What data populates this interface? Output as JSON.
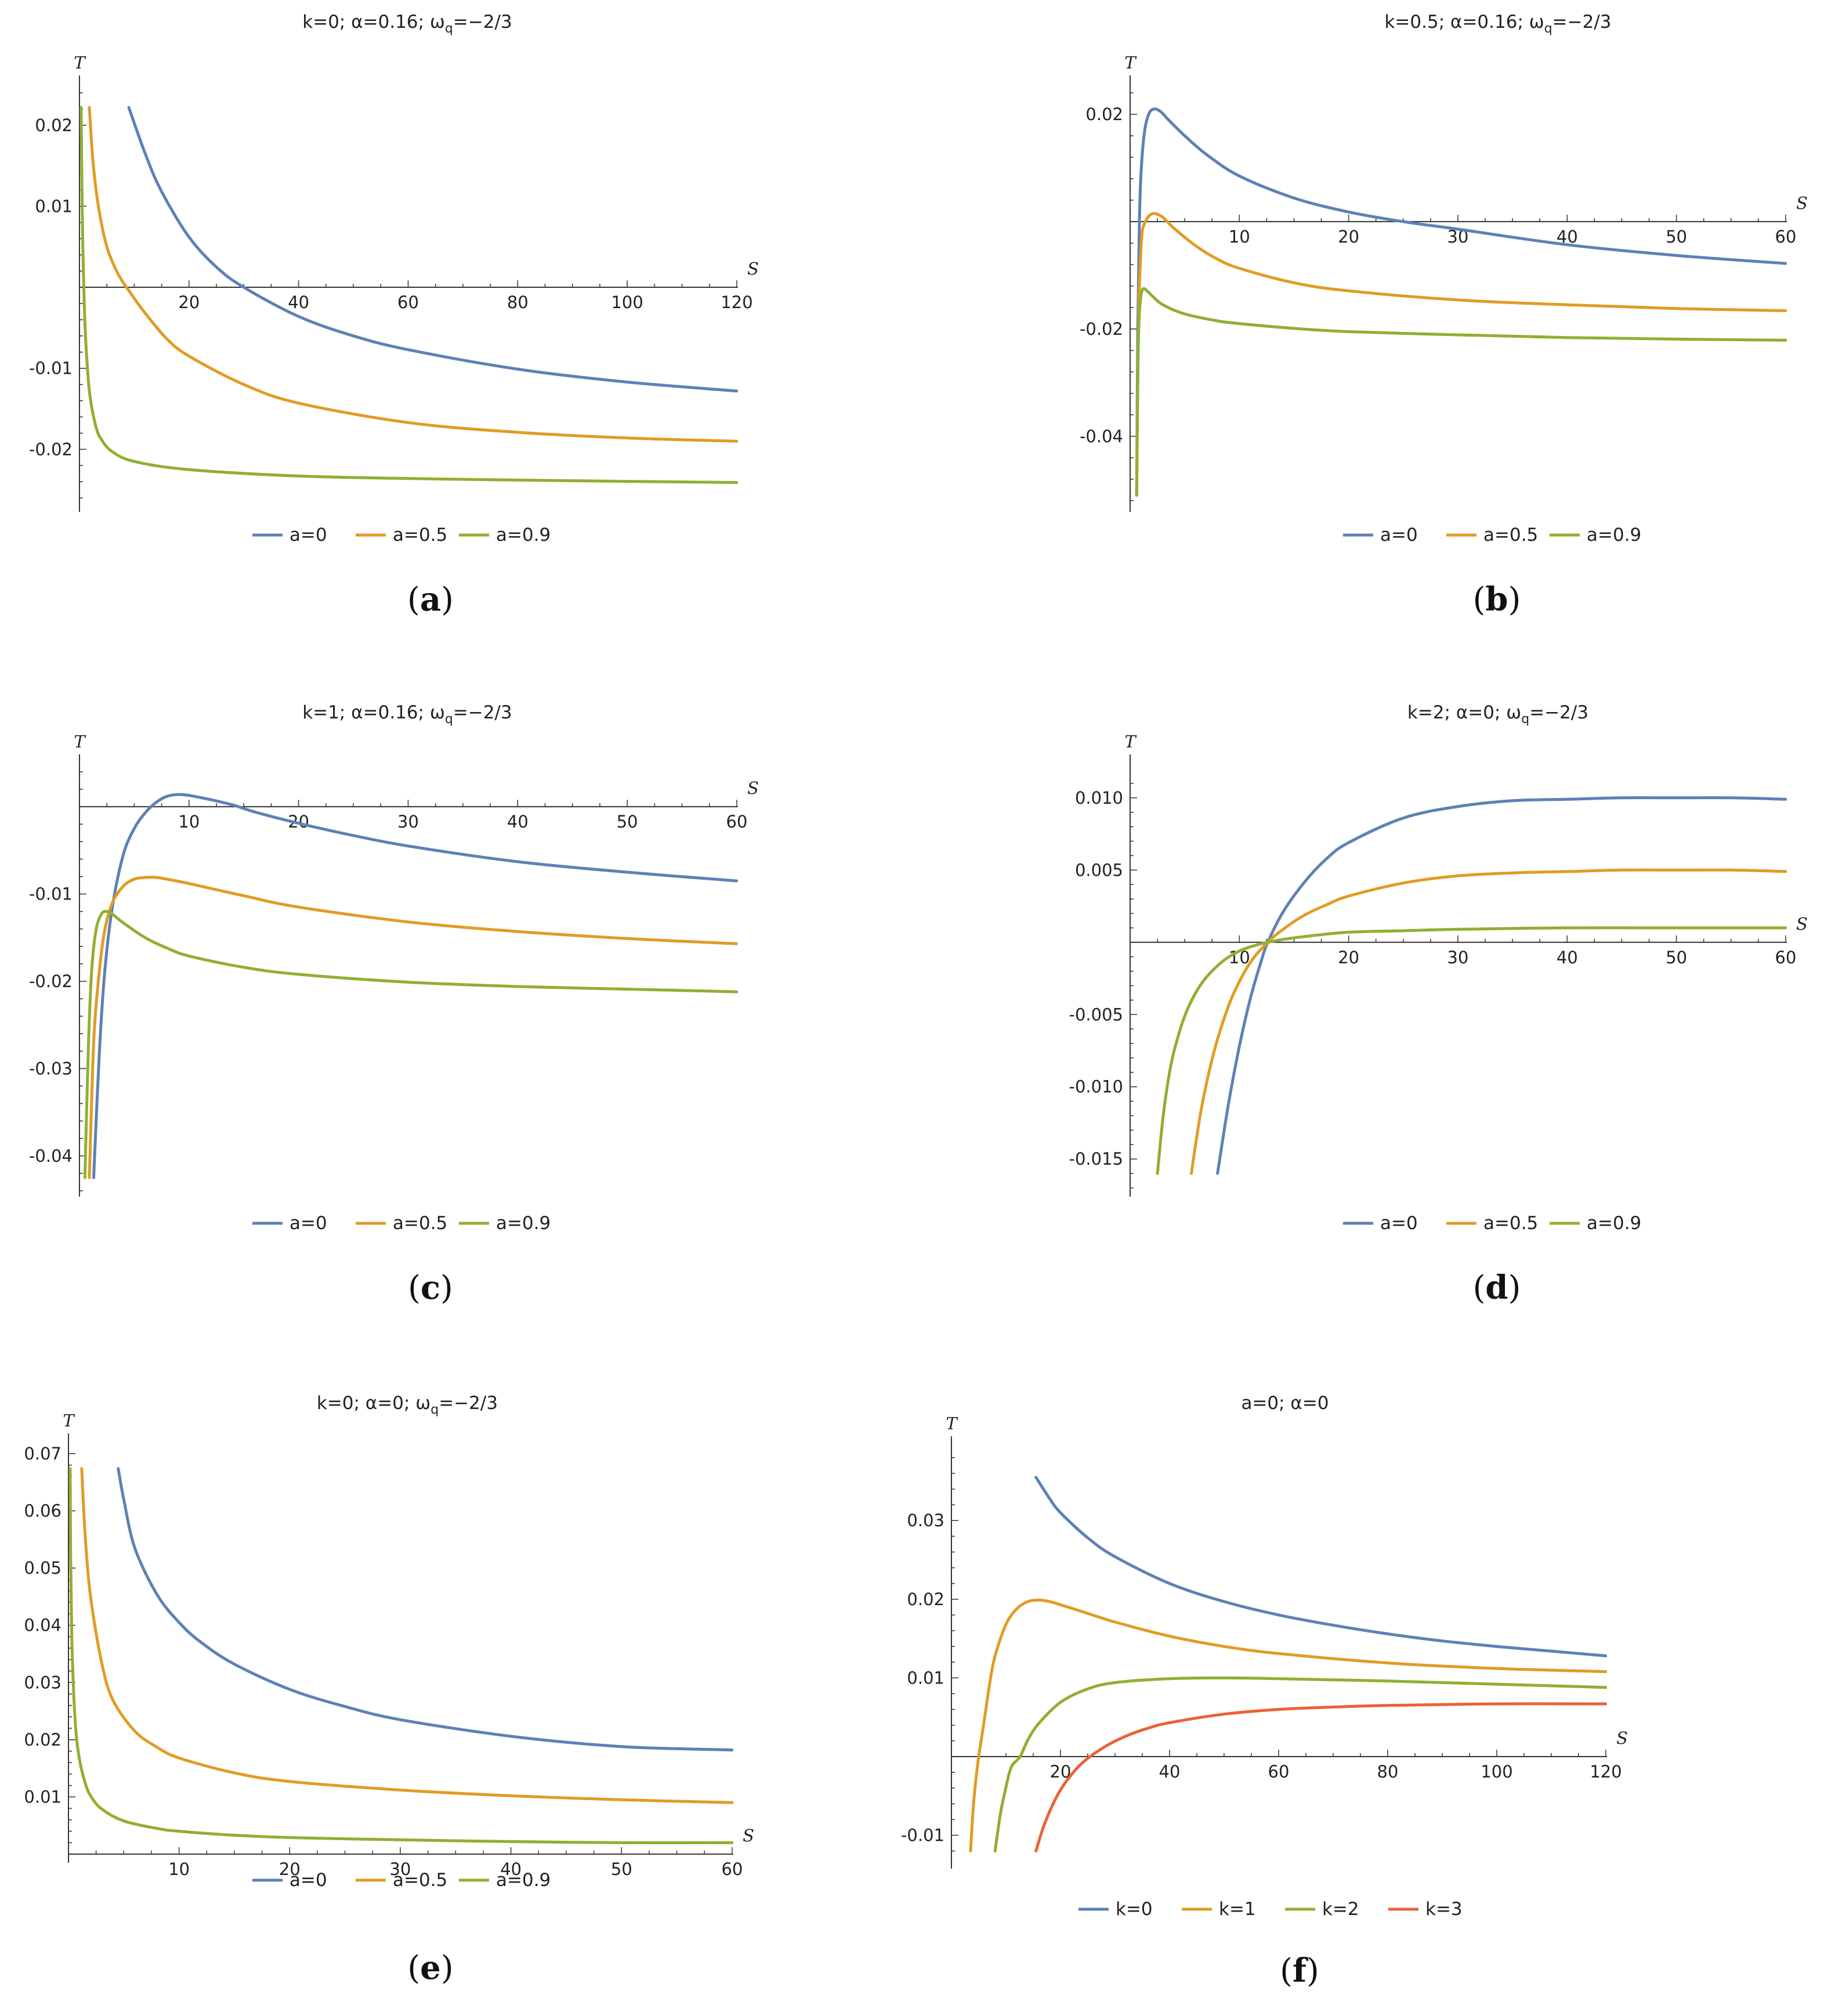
{
  "colors": {
    "blue": "#5e81b5",
    "orange": "#e19c24",
    "green": "#8fb032",
    "red": "#eb6235",
    "axis": "#333333"
  },
  "chart_data": [
    {
      "type": "line",
      "caption": "a",
      "title": "k=0; α=0.16; ω",
      "title_sub": "q",
      "title_tail": "=−2/3",
      "xlabel": "S",
      "ylabel": "T",
      "xlim": [
        0,
        120
      ],
      "ylim": [
        -0.027,
        0.024
      ],
      "xticks": [
        20,
        40,
        60,
        80,
        100,
        120
      ],
      "yticks": [
        0.02,
        0.01,
        -0.01,
        -0.02
      ],
      "xtick_labels": [
        "20",
        "40",
        "60",
        "80",
        "100",
        "120"
      ],
      "ytick_labels": [
        "0.02",
        "0.01",
        "-0.01",
        "-0.02"
      ],
      "series": [
        {
          "name": "a=0",
          "color": "blue",
          "x": [
            9,
            12,
            15,
            20,
            25,
            30,
            40,
            50,
            60,
            80,
            100,
            120
          ],
          "y": [
            0.0222,
            0.0165,
            0.0118,
            0.0062,
            0.0025,
            0.0,
            -0.0036,
            -0.006,
            -0.0077,
            -0.0101,
            -0.0117,
            -0.0128
          ]
        },
        {
          "name": "a=0.5",
          "color": "orange",
          "x": [
            1.8,
            2.5,
            3.5,
            5,
            7,
            9,
            12,
            16,
            20,
            30,
            40,
            60,
            80,
            100,
            120
          ],
          "y": [
            0.0222,
            0.0153,
            0.0098,
            0.005,
            0.0017,
            -0.0004,
            -0.0032,
            -0.0064,
            -0.0085,
            -0.012,
            -0.0143,
            -0.0167,
            -0.0179,
            -0.0186,
            -0.019
          ]
        },
        {
          "name": "a=0.9",
          "color": "green",
          "x": [
            0.3,
            0.5,
            0.7,
            1,
            1.5,
            2,
            3,
            4,
            6,
            10,
            20,
            40,
            60,
            80,
            120
          ],
          "y": [
            0.0222,
            0.0095,
            0.0025,
            -0.0045,
            -0.0105,
            -0.0138,
            -0.0172,
            -0.0188,
            -0.0203,
            -0.0215,
            -0.0225,
            -0.0233,
            -0.0236,
            -0.0238,
            -0.0241
          ]
        }
      ],
      "legend": [
        "a=0",
        "a=0.5",
        "a=0.9"
      ]
    },
    {
      "type": "line",
      "caption": "b",
      "title": "k=0.5; α=0.16; ω",
      "title_sub": "q",
      "title_tail": "=−2/3",
      "xlabel": "S",
      "ylabel": "T",
      "xlim": [
        0,
        60
      ],
      "ylim": [
        -0.053,
        0.024
      ],
      "xticks": [
        10,
        20,
        30,
        40,
        50,
        60
      ],
      "yticks": [
        0.02,
        -0.02,
        -0.04
      ],
      "xtick_labels": [
        "10",
        "20",
        "30",
        "40",
        "50",
        "60"
      ],
      "ytick_labels": [
        "0.02",
        "-0.02",
        "-0.04"
      ],
      "series": [
        {
          "name": "a=0",
          "color": "blue",
          "x": [
            0.6,
            0.7,
            0.85,
            1.0,
            1.3,
            1.7,
            2.2,
            2.8,
            3.5,
            5,
            7,
            10,
            15,
            20,
            25,
            30,
            40,
            50,
            60
          ],
          "y": [
            -0.051,
            -0.02,
            0.0,
            0.009,
            0.0165,
            0.02,
            0.021,
            0.0205,
            0.019,
            0.016,
            0.0125,
            0.0085,
            0.0044,
            0.0018,
            0.0,
            -0.0014,
            -0.0043,
            -0.0063,
            -0.0078
          ]
        },
        {
          "name": "a=0.5",
          "color": "orange",
          "x": [
            0.6,
            0.7,
            0.8,
            0.95,
            1.1,
            1.4,
            1.8,
            2.3,
            3,
            4,
            6,
            8,
            10,
            15,
            20,
            30,
            40,
            50,
            60
          ],
          "y": [
            -0.051,
            -0.028,
            -0.015,
            -0.007,
            -0.002,
            0.0,
            0.0012,
            0.0015,
            0.0008,
            -0.0012,
            -0.0045,
            -0.007,
            -0.0087,
            -0.0114,
            -0.0129,
            -0.0146,
            -0.0155,
            -0.0162,
            -0.0166
          ]
        },
        {
          "name": "a=0.9",
          "color": "green",
          "x": [
            0.6,
            0.7,
            0.8,
            0.95,
            1.1,
            1.3,
            1.6,
            2,
            3,
            5,
            8,
            10,
            15,
            20,
            30,
            40,
            50,
            60
          ],
          "y": [
            -0.051,
            -0.03,
            -0.019,
            -0.0145,
            -0.0128,
            -0.0125,
            -0.013,
            -0.0138,
            -0.0155,
            -0.0172,
            -0.0185,
            -0.019,
            -0.0199,
            -0.0205,
            -0.0211,
            -0.0216,
            -0.0219,
            -0.0221
          ]
        }
      ],
      "legend": [
        "a=0",
        "a=0.5",
        "a=0.9"
      ]
    },
    {
      "type": "line",
      "caption": "c",
      "title": "k=1; α=0.16; ω",
      "title_sub": "q",
      "title_tail": "=−2/3",
      "xlabel": "S",
      "ylabel": "T",
      "xlim": [
        0,
        60
      ],
      "ylim": [
        -0.044,
        0.004
      ],
      "xticks": [
        10,
        20,
        30,
        40,
        50,
        60
      ],
      "yticks": [
        -0.01,
        -0.02,
        -0.03,
        -0.04
      ],
      "xtick_labels": [
        "10",
        "20",
        "30",
        "40",
        "50",
        "60"
      ],
      "ytick_labels": [
        "-0.01",
        "-0.02",
        "-0.03",
        "-0.04"
      ],
      "series": [
        {
          "name": "a=0",
          "color": "blue",
          "x": [
            1.3,
            1.8,
            2.3,
            3,
            4,
            5,
            6,
            7,
            8,
            9,
            10,
            12,
            14,
            16,
            20,
            25,
            30,
            40,
            50,
            60
          ],
          "y": [
            -0.0425,
            -0.0285,
            -0.019,
            -0.0115,
            -0.0055,
            -0.0025,
            -0.0007,
            0.0005,
            0.0012,
            0.0014,
            0.0013,
            0.0008,
            0.0002,
            -0.0006,
            -0.0019,
            -0.0033,
            -0.0045,
            -0.0063,
            -0.0075,
            -0.0085
          ]
        },
        {
          "name": "a=0.5",
          "color": "orange",
          "x": [
            0.9,
            1.3,
            1.8,
            2.3,
            3,
            4,
            5,
            6,
            7,
            8,
            10,
            15,
            20,
            30,
            40,
            50,
            60
          ],
          "y": [
            -0.0425,
            -0.027,
            -0.019,
            -0.0142,
            -0.011,
            -0.0091,
            -0.0083,
            -0.0081,
            -0.0081,
            -0.0083,
            -0.0088,
            -0.0102,
            -0.0115,
            -0.0132,
            -0.0143,
            -0.0151,
            -0.0157
          ]
        },
        {
          "name": "a=0.9",
          "color": "green",
          "x": [
            0.5,
            0.8,
            1.1,
            1.5,
            2,
            2.5,
            3,
            4,
            6,
            8,
            10,
            15,
            20,
            30,
            40,
            50,
            60
          ],
          "y": [
            -0.0425,
            -0.028,
            -0.019,
            -0.0142,
            -0.0123,
            -0.012,
            -0.0123,
            -0.0133,
            -0.015,
            -0.0162,
            -0.0171,
            -0.0184,
            -0.0192,
            -0.0201,
            -0.0206,
            -0.0209,
            -0.0212
          ]
        }
      ],
      "legend": [
        "a=0",
        "a=0.5",
        "a=0.9"
      ]
    },
    {
      "type": "line",
      "caption": "d",
      "title": "k=2; α=0; ω",
      "title_sub": "q",
      "title_tail": "=−2/3",
      "xlabel": "S",
      "ylabel": "T",
      "xlim": [
        0,
        60
      ],
      "ylim": [
        -0.0172,
        0.0118
      ],
      "xticks": [
        10,
        20,
        30,
        40,
        50,
        60
      ],
      "yticks": [
        0.01,
        0.005,
        -0.005,
        -0.01,
        -0.015
      ],
      "xtick_labels": [
        "10",
        "20",
        "30",
        "40",
        "50",
        "60"
      ],
      "ytick_labels": [
        "0.010",
        "0.005",
        "-0.005",
        "-0.010",
        "-0.015"
      ],
      "series": [
        {
          "name": "a=0",
          "color": "blue",
          "x": [
            8,
            9,
            10,
            11,
            12,
            12.6,
            14,
            16,
            18,
            20,
            25,
            30,
            35,
            40,
            45,
            50,
            55,
            60
          ],
          "y": [
            -0.016,
            -0.0112,
            -0.0072,
            -0.0039,
            -0.0013,
            0.0,
            0.0021,
            0.0042,
            0.0058,
            0.0069,
            0.0086,
            0.0094,
            0.0098,
            0.0099,
            0.01,
            0.01,
            0.01,
            0.0099
          ]
        },
        {
          "name": "a=0.5",
          "color": "orange",
          "x": [
            5.6,
            6.5,
            7.5,
            8.5,
            9.5,
            11,
            12.6,
            14,
            16,
            18,
            20,
            25,
            30,
            35,
            40,
            45,
            50,
            55,
            60
          ],
          "y": [
            -0.016,
            -0.0116,
            -0.0081,
            -0.0055,
            -0.0035,
            -0.0014,
            0.0,
            0.0009,
            0.0019,
            0.0026,
            0.0032,
            0.0041,
            0.0046,
            0.0048,
            0.0049,
            0.005,
            0.005,
            0.005,
            0.0049
          ]
        },
        {
          "name": "a=0.9",
          "color": "green",
          "x": [
            2.5,
            3,
            3.5,
            4,
            5,
            6,
            7,
            8.5,
            10,
            11.5,
            12.6,
            14,
            16,
            20,
            25,
            30,
            40,
            50,
            60
          ],
          "y": [
            -0.016,
            -0.0122,
            -0.0095,
            -0.0076,
            -0.0051,
            -0.0035,
            -0.0024,
            -0.0013,
            -0.0006,
            -0.0002,
            0.0,
            0.0002,
            0.0004,
            0.0007,
            0.0008,
            0.0009,
            0.001,
            0.001,
            0.001
          ]
        }
      ],
      "legend": [
        "a=0",
        "a=0.5",
        "a=0.9"
      ]
    },
    {
      "type": "line",
      "caption": "e",
      "title": "k=0; α=0; ω",
      "title_sub": "q",
      "title_tail": "=−2/3",
      "xlabel": "S",
      "ylabel": "T",
      "xlim": [
        0,
        60
      ],
      "ylim": [
        -0.0005,
        0.0705
      ],
      "xticks": [
        10,
        20,
        30,
        40,
        50,
        60
      ],
      "yticks": [
        0.07,
        0.06,
        0.05,
        0.04,
        0.03,
        0.02,
        0.01
      ],
      "xtick_labels": [
        "10",
        "20",
        "30",
        "40",
        "50",
        "60"
      ],
      "ytick_labels": [
        "0.07",
        "0.06",
        "0.05",
        "0.04",
        "0.03",
        "0.02",
        "0.01"
      ],
      "series": [
        {
          "name": "a=0",
          "color": "blue",
          "x": [
            4.5,
            5,
            6,
            8,
            10,
            12,
            15,
            20,
            25,
            30,
            40,
            50,
            60
          ],
          "y": [
            0.0674,
            0.062,
            0.0535,
            0.0454,
            0.0405,
            0.037,
            0.0332,
            0.0288,
            0.0258,
            0.0235,
            0.0206,
            0.0188,
            0.0182
          ]
        },
        {
          "name": "a=0.5",
          "color": "orange",
          "x": [
            1.2,
            1.5,
            2,
            3,
            4,
            6,
            8,
            10,
            15,
            20,
            30,
            40,
            50,
            60
          ],
          "y": [
            0.0674,
            0.056,
            0.045,
            0.0335,
            0.027,
            0.0215,
            0.0187,
            0.0168,
            0.0142,
            0.0127,
            0.0112,
            0.0102,
            0.0095,
            0.009
          ]
        },
        {
          "name": "a=0.9",
          "color": "green",
          "x": [
            0.15,
            0.2,
            0.3,
            0.5,
            0.7,
            1,
            1.5,
            2,
            3,
            5,
            8,
            10,
            15,
            20,
            30,
            40,
            50,
            60
          ],
          "y": [
            0.0674,
            0.052,
            0.038,
            0.027,
            0.021,
            0.0165,
            0.0125,
            0.0102,
            0.0079,
            0.0058,
            0.0045,
            0.004,
            0.0033,
            0.0029,
            0.0025,
            0.0022,
            0.002,
            0.002
          ]
        }
      ],
      "legend": [
        "a=0",
        "a=0.5",
        "a=0.9"
      ]
    },
    {
      "type": "line",
      "caption": "f",
      "title": "a=0; α=0",
      "title_sub": "",
      "title_tail": "",
      "xlabel": "S",
      "ylabel": "T",
      "xlim": [
        0,
        120
      ],
      "ylim": [
        -0.0135,
        0.0385
      ],
      "xticks": [
        20,
        40,
        60,
        80,
        100,
        120
      ],
      "yticks": [
        0.03,
        0.02,
        0.01,
        -0.01
      ],
      "xtick_labels": [
        "20",
        "40",
        "60",
        "80",
        "100",
        "120"
      ],
      "ytick_labels": [
        "0.03",
        "0.02",
        "0.01",
        "-0.01"
      ],
      "series": [
        {
          "name": "k=0",
          "color": "blue",
          "x": [
            15.5,
            18,
            20,
            25,
            30,
            40,
            50,
            60,
            70,
            80,
            90,
            100,
            110,
            120
          ],
          "y": [
            0.0355,
            0.0328,
            0.031,
            0.0278,
            0.0254,
            0.022,
            0.0197,
            0.018,
            0.0167,
            0.0156,
            0.0147,
            0.014,
            0.0134,
            0.0128
          ]
        },
        {
          "name": "k=1",
          "color": "orange",
          "x": [
            3.5,
            4,
            4.5,
            5,
            6,
            7,
            8,
            10,
            12,
            14,
            16,
            18,
            20,
            25,
            30,
            40,
            50,
            60,
            80,
            100,
            120
          ],
          "y": [
            -0.012,
            -0.0065,
            -0.0028,
            0.0,
            0.0045,
            0.0092,
            0.0128,
            0.0168,
            0.0188,
            0.0197,
            0.0199,
            0.0197,
            0.0193,
            0.0182,
            0.0171,
            0.0153,
            0.014,
            0.0131,
            0.0119,
            0.0112,
            0.0108
          ]
        },
        {
          "name": "k=2",
          "color": "green",
          "x": [
            8,
            9,
            10,
            11,
            12.6,
            14,
            16,
            20,
            25,
            30,
            40,
            50,
            60,
            80,
            100,
            120
          ],
          "y": [
            -0.012,
            -0.0072,
            -0.0039,
            -0.0013,
            0.0,
            0.0021,
            0.0042,
            0.0069,
            0.0086,
            0.0094,
            0.0099,
            0.01,
            0.0099,
            0.0096,
            0.0092,
            0.0088
          ]
        },
        {
          "name": "k=3",
          "color": "red",
          "x": [
            15.5,
            17,
            19,
            21,
            24,
            28,
            32,
            36,
            40,
            50,
            60,
            70,
            80,
            100,
            120
          ],
          "y": [
            -0.012,
            -0.0087,
            -0.0055,
            -0.0032,
            -0.0008,
            0.0012,
            0.0026,
            0.0036,
            0.0043,
            0.0054,
            0.006,
            0.0063,
            0.0065,
            0.0067,
            0.0067
          ]
        }
      ],
      "legend": [
        "k=0",
        "k=1",
        "k=2",
        "k=3"
      ]
    }
  ]
}
